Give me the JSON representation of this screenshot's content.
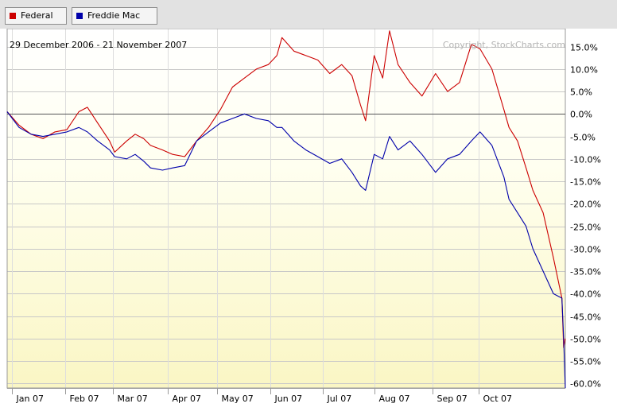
{
  "legend": [
    {
      "label": "Federal",
      "color": "#cc0000"
    },
    {
      "label": "Freddie Mac",
      "color": "#0000aa"
    }
  ],
  "date_range": "29 December 2006 - 21 November 2007",
  "copyright": "Copyright, StockCharts.com",
  "chart_data": {
    "type": "line",
    "ylim": [
      -61,
      19
    ],
    "y_ticks": [
      15,
      10,
      5,
      0,
      -5,
      -10,
      -15,
      -20,
      -25,
      -30,
      -35,
      -40,
      -45,
      -50,
      -55,
      -60
    ],
    "y_tick_labels": [
      "15.0%",
      "10.0%",
      "5.0%",
      "0.0%",
      "-5.0%",
      "-10.0%",
      "-15.0%",
      "-20.0%",
      "-25.0%",
      "-30.0%",
      "-35.0%",
      "-40.0%",
      "-45.0%",
      "-50.0%",
      "-55.0%",
      "-60.0%"
    ],
    "xlim": [
      "2006-12-29",
      "2007-11-21"
    ],
    "x_ticks": [
      {
        "label": "Jan 07",
        "date": "2007-01-01"
      },
      {
        "label": "Feb 07",
        "date": "2007-02-01"
      },
      {
        "label": "Mar 07",
        "date": "2007-03-01"
      },
      {
        "label": "Apr 07",
        "date": "2007-04-02"
      },
      {
        "label": "May 07",
        "date": "2007-05-01"
      },
      {
        "label": "Jun 07",
        "date": "2007-06-01"
      },
      {
        "label": "Jul 07",
        "date": "2007-07-02"
      },
      {
        "label": "Aug 07",
        "date": "2007-08-01"
      },
      {
        "label": "Sep 07",
        "date": "2007-09-04"
      },
      {
        "label": "Oct 07",
        "date": "2007-10-01"
      }
    ],
    "grid": true,
    "series": [
      {
        "name": "Federal",
        "color": "#cc0000",
        "x": [
          "2006-12-29",
          "2007-01-05",
          "2007-01-12",
          "2007-01-19",
          "2007-01-26",
          "2007-02-02",
          "2007-02-09",
          "2007-02-14",
          "2007-02-20",
          "2007-02-27",
          "2007-03-02",
          "2007-03-09",
          "2007-03-14",
          "2007-03-19",
          "2007-03-23",
          "2007-03-30",
          "2007-04-05",
          "2007-04-12",
          "2007-04-19",
          "2007-04-26",
          "2007-05-03",
          "2007-05-10",
          "2007-05-17",
          "2007-05-24",
          "2007-05-31",
          "2007-06-05",
          "2007-06-08",
          "2007-06-15",
          "2007-06-22",
          "2007-06-29",
          "2007-07-06",
          "2007-07-13",
          "2007-07-19",
          "2007-07-24",
          "2007-07-27",
          "2007-08-01",
          "2007-08-06",
          "2007-08-10",
          "2007-08-15",
          "2007-08-22",
          "2007-08-29",
          "2007-09-06",
          "2007-09-13",
          "2007-09-20",
          "2007-09-27",
          "2007-10-02",
          "2007-10-09",
          "2007-10-16",
          "2007-10-19",
          "2007-10-24",
          "2007-10-29",
          "2007-11-02",
          "2007-11-08",
          "2007-11-14",
          "2007-11-19",
          "2007-11-20",
          "2007-11-21"
        ],
        "values": [
          0.5,
          -2.5,
          -4.5,
          -5.5,
          -4,
          -3.5,
          0.5,
          1.5,
          -2,
          -6,
          -8.5,
          -6,
          -4.5,
          -5.5,
          -7,
          -8,
          -9,
          -9.5,
          -6,
          -3,
          1,
          6,
          8,
          10,
          11,
          13,
          17,
          14,
          13,
          12,
          9,
          11,
          8.5,
          2,
          -1.5,
          13,
          8,
          18.5,
          11,
          7,
          4,
          9,
          5,
          7,
          15.5,
          14.5,
          10,
          1,
          -3,
          -6,
          -12,
          -17,
          -22,
          -32,
          -41,
          -52,
          -50
        ]
      },
      {
        "name": "Freddie Mac",
        "color": "#0000aa",
        "x": [
          "2006-12-29",
          "2007-01-05",
          "2007-01-12",
          "2007-01-19",
          "2007-01-26",
          "2007-02-02",
          "2007-02-09",
          "2007-02-14",
          "2007-02-20",
          "2007-02-27",
          "2007-03-02",
          "2007-03-09",
          "2007-03-14",
          "2007-03-19",
          "2007-03-23",
          "2007-03-30",
          "2007-04-05",
          "2007-04-12",
          "2007-04-19",
          "2007-04-26",
          "2007-05-03",
          "2007-05-10",
          "2007-05-17",
          "2007-05-24",
          "2007-05-31",
          "2007-06-05",
          "2007-06-08",
          "2007-06-15",
          "2007-06-22",
          "2007-06-29",
          "2007-07-06",
          "2007-07-13",
          "2007-07-19",
          "2007-07-24",
          "2007-07-27",
          "2007-08-01",
          "2007-08-06",
          "2007-08-10",
          "2007-08-15",
          "2007-08-22",
          "2007-08-29",
          "2007-09-06",
          "2007-09-13",
          "2007-09-20",
          "2007-09-27",
          "2007-10-02",
          "2007-10-09",
          "2007-10-16",
          "2007-10-19",
          "2007-10-24",
          "2007-10-29",
          "2007-11-02",
          "2007-11-08",
          "2007-11-14",
          "2007-11-19",
          "2007-11-20",
          "2007-11-21"
        ],
        "values": [
          0.5,
          -3,
          -4.5,
          -5,
          -4.5,
          -4,
          -3,
          -4,
          -6,
          -8,
          -9.5,
          -10,
          -9,
          -10.5,
          -12,
          -12.5,
          -12,
          -11.5,
          -6,
          -4,
          -2,
          -1,
          0,
          -1,
          -1.5,
          -3,
          -3,
          -6,
          -8,
          -9.5,
          -11,
          -10,
          -13,
          -16,
          -17,
          -9,
          -10,
          -5,
          -8,
          -6,
          -9,
          -13,
          -10,
          -9,
          -6,
          -4,
          -7,
          -14,
          -19,
          -22,
          -25,
          -30,
          -35,
          -40,
          -41,
          -50,
          -61
        ]
      }
    ]
  }
}
